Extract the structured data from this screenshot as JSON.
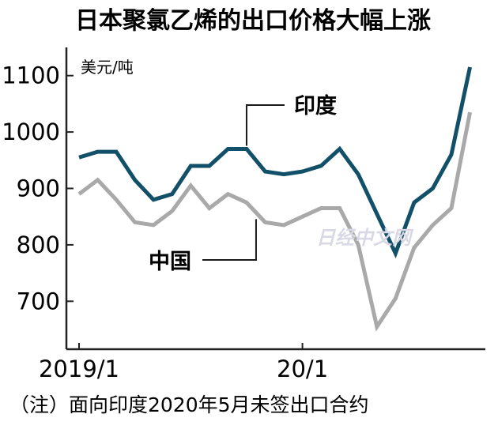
{
  "chart_data": {
    "type": "line",
    "title": "日本聚氯乙烯的出口价格大幅上涨",
    "unit_label": "美元/吨",
    "x": [
      "2019/1",
      "2019/2",
      "2019/3",
      "2019/4",
      "2019/5",
      "2019/6",
      "2019/7",
      "2019/8",
      "2019/9",
      "2019/10",
      "2019/11",
      "2019/12",
      "20/1",
      "20/2",
      "20/3",
      "20/4",
      "20/5",
      "20/6",
      "20/7",
      "20/8",
      "20/9",
      "20/10",
      "20/11"
    ],
    "x_tick_labels": [
      {
        "label": "2019/1",
        "index": 0
      },
      {
        "label": "20/1",
        "index": 12
      }
    ],
    "y_ticks": [
      700,
      800,
      900,
      1000,
      1100
    ],
    "ylim": [
      615,
      1150
    ],
    "series": [
      {
        "name": "印度",
        "color": "#12506a",
        "values": [
          955,
          965,
          965,
          915,
          880,
          890,
          940,
          940,
          970,
          970,
          930,
          925,
          930,
          940,
          970,
          925,
          855,
          785,
          875,
          900,
          960,
          1115,
          null
        ]
      },
      {
        "name": "中国",
        "color": "#a9a9a9",
        "values": [
          890,
          915,
          880,
          840,
          835,
          860,
          905,
          865,
          890,
          875,
          840,
          835,
          850,
          865,
          865,
          800,
          655,
          705,
          795,
          835,
          865,
          1035,
          null
        ]
      }
    ],
    "note": "（注）面向印度2020年5月未签出口合约",
    "watermark": "日经中文网"
  }
}
